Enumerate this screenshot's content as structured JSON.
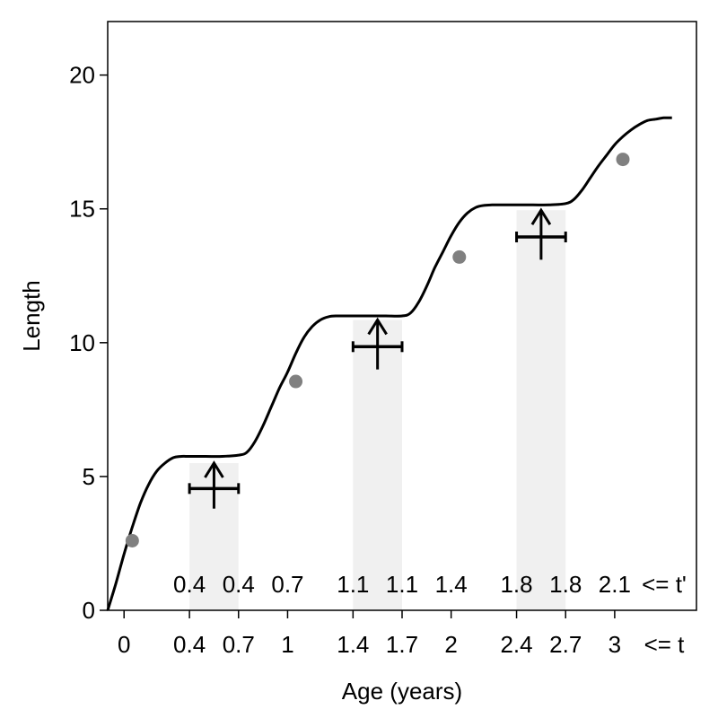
{
  "chart_data": {
    "type": "line",
    "xlabel": "Age (years)",
    "ylabel": "Length",
    "xlim": [
      -0.1,
      3.5
    ],
    "ylim": [
      0,
      22
    ],
    "grid": false,
    "y_ticks": [
      0,
      5,
      10,
      15,
      20
    ],
    "x_ticks": [
      {
        "value": 0,
        "label": "0"
      },
      {
        "value": 0.4,
        "label": "0.4"
      },
      {
        "value": 0.7,
        "label": "0.7"
      },
      {
        "value": 1,
        "label": "1"
      },
      {
        "value": 1.4,
        "label": "1.4"
      },
      {
        "value": 1.7,
        "label": "1.7"
      },
      {
        "value": 2,
        "label": "2"
      },
      {
        "value": 2.4,
        "label": "2.4"
      },
      {
        "value": 2.7,
        "label": "2.7"
      },
      {
        "value": 3,
        "label": "3"
      }
    ],
    "x_axis_annotation": "<= t",
    "shaded_intervals": [
      [
        0.4,
        0.7
      ],
      [
        1.4,
        1.7
      ],
      [
        2.4,
        2.7
      ]
    ],
    "growth_curve": {
      "x": [
        -0.1,
        -0.05,
        0.0,
        0.05,
        0.1,
        0.15,
        0.2,
        0.25,
        0.3,
        0.35,
        0.4,
        0.5,
        0.6,
        0.7,
        0.75,
        0.8,
        0.85,
        0.9,
        0.95,
        1.0,
        1.05,
        1.1,
        1.15,
        1.2,
        1.25,
        1.3,
        1.35,
        1.4,
        1.5,
        1.6,
        1.7,
        1.75,
        1.8,
        1.85,
        1.9,
        1.95,
        2.0,
        2.05,
        2.1,
        2.15,
        2.2,
        2.25,
        2.3,
        2.35,
        2.4,
        2.5,
        2.6,
        2.7,
        2.75,
        2.8,
        2.85,
        2.9,
        2.95,
        3.0,
        3.05,
        3.1,
        3.15,
        3.2,
        3.25,
        3.3,
        3.35
      ],
      "y": [
        0.0,
        1.0,
        2.1,
        3.1,
        4.0,
        4.7,
        5.2,
        5.5,
        5.7,
        5.75,
        5.75,
        5.75,
        5.75,
        5.8,
        5.9,
        6.3,
        6.9,
        7.6,
        8.3,
        8.9,
        9.6,
        10.2,
        10.6,
        10.85,
        10.97,
        11.0,
        11.0,
        11.0,
        11.0,
        11.0,
        11.0,
        11.1,
        11.5,
        12.1,
        12.8,
        13.4,
        14.0,
        14.5,
        14.85,
        15.05,
        15.13,
        15.15,
        15.15,
        15.15,
        15.15,
        15.15,
        15.15,
        15.2,
        15.35,
        15.7,
        16.15,
        16.6,
        17.0,
        17.4,
        17.7,
        17.95,
        18.15,
        18.3,
        18.35,
        18.4,
        18.4
      ]
    },
    "observations": {
      "x": [
        0.05,
        1.05,
        2.05,
        3.05
      ],
      "y": [
        2.6,
        8.55,
        13.2,
        16.85
      ]
    },
    "winter_marks": [
      {
        "x": 0.55,
        "y": 4.55,
        "x_low": 0.4,
        "x_high": 0.7,
        "arrow_top": 5.5,
        "arrow_bottom": 3.8
      },
      {
        "x": 1.55,
        "y": 9.85,
        "x_low": 1.4,
        "x_high": 1.7,
        "arrow_top": 10.85,
        "arrow_bottom": 9.0
      },
      {
        "x": 2.55,
        "y": 13.95,
        "x_low": 2.4,
        "x_high": 2.7,
        "arrow_top": 14.95,
        "arrow_bottom": 13.1
      }
    ],
    "t_prime_labels": [
      {
        "x": 0.4,
        "label": "0.4"
      },
      {
        "x": 0.7,
        "label": "0.4"
      },
      {
        "x": 1.0,
        "label": "0.7"
      },
      {
        "x": 1.4,
        "label": "1.1"
      },
      {
        "x": 1.7,
        "label": "1.1"
      },
      {
        "x": 2.0,
        "label": "1.4"
      },
      {
        "x": 2.4,
        "label": "1.8"
      },
      {
        "x": 2.7,
        "label": "1.8"
      },
      {
        "x": 3.0,
        "label": "2.1"
      }
    ],
    "t_prime_annotation": "<= t'",
    "colors": {
      "curve": "#000000",
      "points": "#808080",
      "shade": "#f0f0f0",
      "marks": "#000000"
    }
  }
}
